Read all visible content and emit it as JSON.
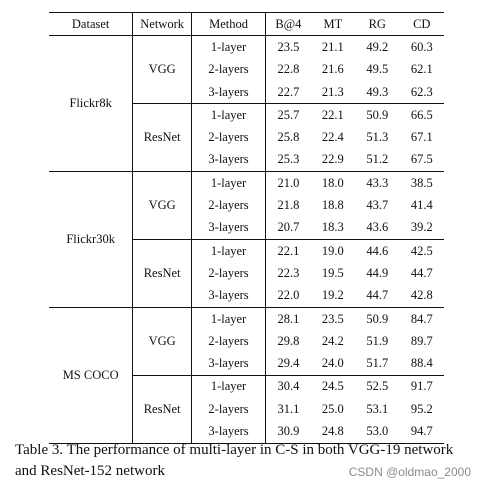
{
  "table": {
    "headers": {
      "dataset": "Dataset",
      "network": "Network",
      "method": "Method",
      "b4": "B@4",
      "mt": "MT",
      "rg": "RG",
      "cd": "CD"
    },
    "datasets": [
      {
        "name": "Flickr8k",
        "networks": [
          {
            "name": "VGG",
            "rows": [
              {
                "method": "1-layer",
                "b4": "23.5",
                "mt": "21.1",
                "rg": "49.2",
                "cd": "60.3",
                "bold": [
                  "b4"
                ]
              },
              {
                "method": "2-layers",
                "b4": "22.8",
                "mt": "21.6",
                "rg": "49.5",
                "cd": "62.1",
                "bold": [
                  "mt",
                  "rg"
                ]
              },
              {
                "method": "3-layers",
                "b4": "22.7",
                "mt": "21.3",
                "rg": "49.3",
                "cd": "62.3",
                "bold": [
                  "cd"
                ]
              }
            ]
          },
          {
            "name": "ResNet",
            "rows": [
              {
                "method": "1-layer",
                "b4": "25.7",
                "mt": "22.1",
                "rg": "50.9",
                "cd": "66.5",
                "bold": []
              },
              {
                "method": "2-layers",
                "b4": "25.8",
                "mt": "22.4",
                "rg": "51.3",
                "cd": "67.1",
                "bold": [
                  "b4",
                  "rg"
                ]
              },
              {
                "method": "3-layers",
                "b4": "25.3",
                "mt": "22.9",
                "rg": "51.2",
                "cd": "67.5",
                "bold": [
                  "mt",
                  "cd"
                ]
              }
            ]
          }
        ]
      },
      {
        "name": "Flickr30k",
        "networks": [
          {
            "name": "VGG",
            "rows": [
              {
                "method": "1-layer",
                "b4": "21.0",
                "mt": "18.0",
                "rg": "43.3",
                "cd": "38.5",
                "bold": []
              },
              {
                "method": "2-layers",
                "b4": "21.8",
                "mt": "18.8",
                "rg": "43.7",
                "cd": "41.4",
                "bold": [
                  "b4",
                  "mt",
                  "rg",
                  "cd"
                ]
              },
              {
                "method": "3-layers",
                "b4": "20.7",
                "mt": "18.3",
                "rg": "43.6",
                "cd": "39.2",
                "bold": []
              }
            ]
          },
          {
            "name": "ResNet",
            "rows": [
              {
                "method": "1-layer",
                "b4": "22.1",
                "mt": "19.0",
                "rg": "44.6",
                "cd": "42.5",
                "bold": []
              },
              {
                "method": "2-layers",
                "b4": "22.3",
                "mt": "19.5",
                "rg": "44.9",
                "cd": "44.7",
                "bold": [
                  "b4",
                  "mt",
                  "rg",
                  "cd"
                ]
              },
              {
                "method": "3-layers",
                "b4": "22.0",
                "mt": "19.2",
                "rg": "44.7",
                "cd": "42.8",
                "bold": []
              }
            ]
          }
        ]
      },
      {
        "name": "MS COCO",
        "networks": [
          {
            "name": "VGG",
            "rows": [
              {
                "method": "1-layer",
                "b4": "28.1",
                "mt": "23.5",
                "rg": "50.9",
                "cd": "84.7",
                "bold": []
              },
              {
                "method": "2-layers",
                "b4": "29.8",
                "mt": "24.2",
                "rg": "51.9",
                "cd": "89.7",
                "bold": [
                  "b4",
                  "mt",
                  "rg",
                  "cd"
                ]
              },
              {
                "method": "3-layers",
                "b4": "29.4",
                "mt": "24.0",
                "rg": "51.7",
                "cd": "88.4",
                "bold": []
              }
            ]
          },
          {
            "name": "ResNet",
            "rows": [
              {
                "method": "1-layer",
                "b4": "30.4",
                "mt": "24.5",
                "rg": "52.5",
                "cd": "91.7",
                "bold": []
              },
              {
                "method": "2-layers",
                "b4": "31.1",
                "mt": "25.0",
                "rg": "53.1",
                "cd": "95.2",
                "bold": [
                  "b4",
                  "mt",
                  "rg",
                  "cd"
                ]
              },
              {
                "method": "3-layers",
                "b4": "30.9",
                "mt": "24.8",
                "rg": "53.0",
                "cd": "94.7",
                "bold": []
              }
            ]
          }
        ]
      }
    ]
  },
  "caption": "Table 3. The performance of multi-layer in C-S in both VGG-19 network and ResNet-152 network",
  "watermark": "CSDN @oldmao_2000"
}
